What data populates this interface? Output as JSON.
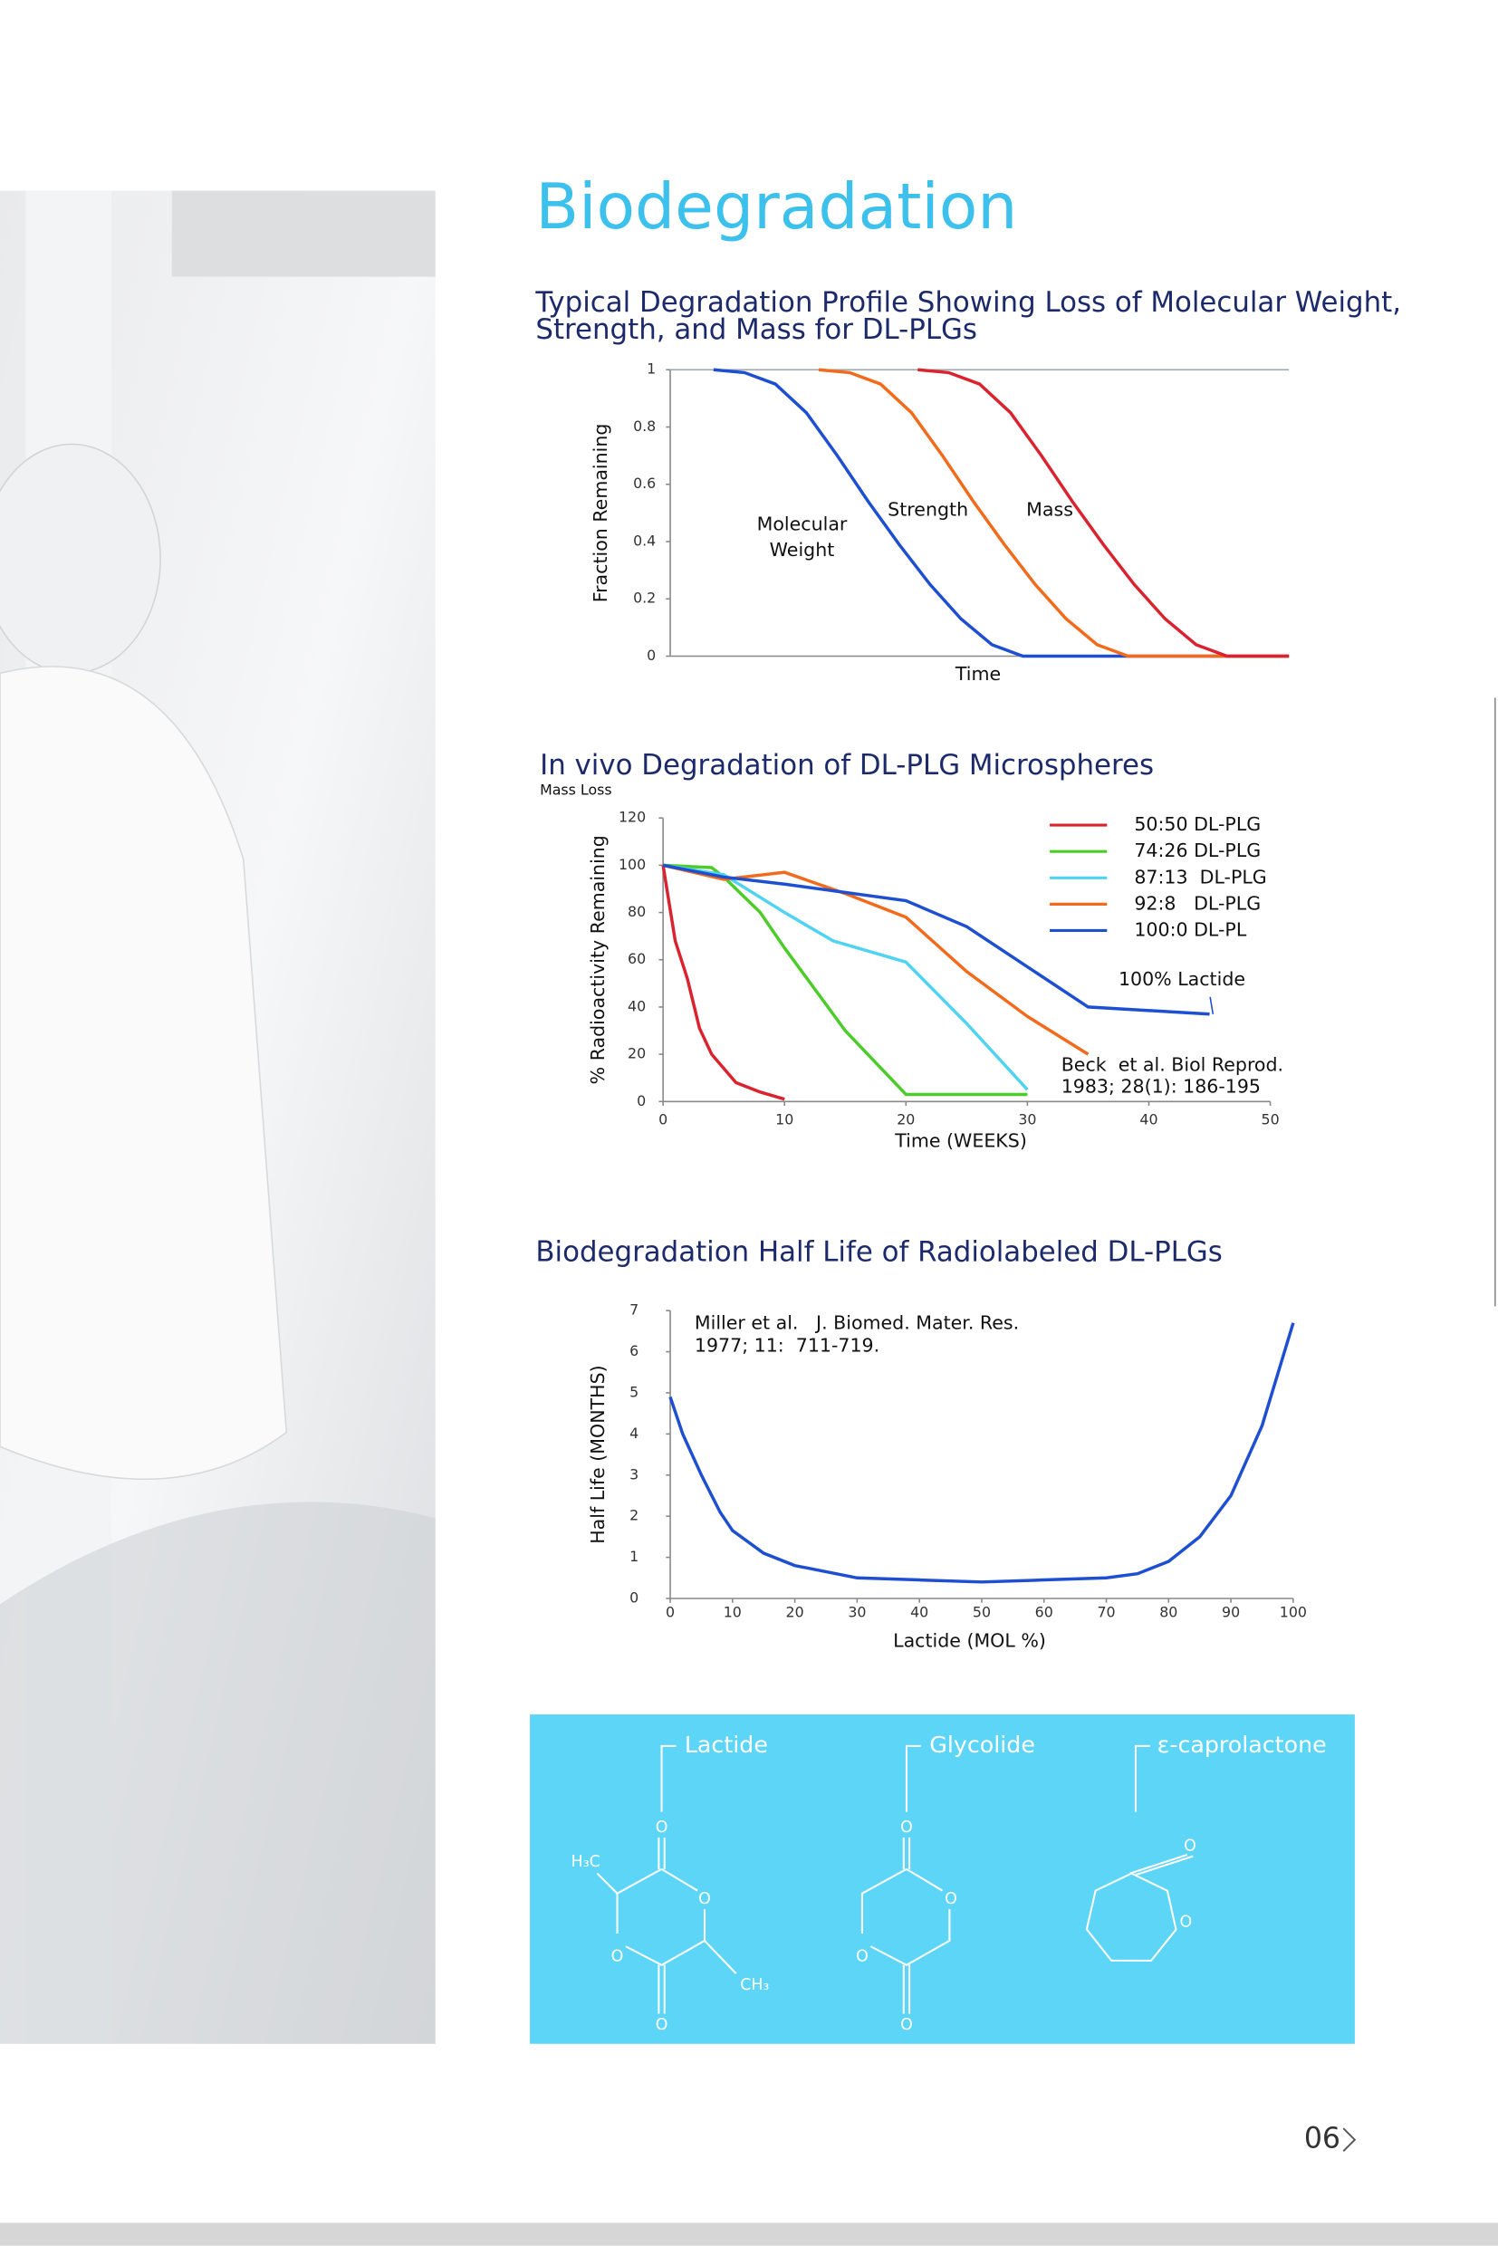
{
  "title": "Biodegradation",
  "page_number": "06",
  "chart_data": [
    {
      "type": "line",
      "title": [
        "Typical Degradation Profile Showing Loss of Molecular Weight,",
        "Strength, and Mass for DL-PLGs"
      ],
      "y_label": "Fraction Remaining",
      "x_label": "Time",
      "xlim": [
        0,
        100
      ],
      "ylim": [
        0,
        1
      ],
      "yticks": [
        0,
        0.2,
        0.4,
        0.6,
        0.8,
        1
      ],
      "series": [
        {
          "name": "Molecular Weight",
          "color": "#1d4fd0",
          "x": [
            7,
            12,
            17,
            22,
            27,
            32,
            37,
            42,
            47,
            52,
            57,
            100
          ],
          "values": [
            1,
            0.99,
            0.95,
            0.85,
            0.7,
            0.54,
            0.39,
            0.25,
            0.13,
            0.04,
            0,
            0
          ]
        },
        {
          "name": "Strength",
          "color": "#f26a1b",
          "x": [
            24,
            29,
            34,
            39,
            44,
            49,
            54,
            59,
            64,
            69,
            74,
            100
          ],
          "values": [
            1,
            0.99,
            0.95,
            0.85,
            0.7,
            0.54,
            0.39,
            0.25,
            0.13,
            0.04,
            0,
            0
          ]
        },
        {
          "name": "Mass",
          "color": "#d9232e",
          "x": [
            40,
            45,
            50,
            55,
            60,
            65,
            70,
            75,
            80,
            85,
            90,
            100
          ],
          "values": [
            1,
            0.99,
            0.95,
            0.85,
            0.7,
            0.54,
            0.39,
            0.25,
            0.13,
            0.04,
            0,
            0
          ]
        }
      ]
    },
    {
      "type": "line",
      "title": "In vivo Degradation of  DL-PLG Microspheres",
      "subtitle": "Mass Loss",
      "y_label": "% Radioactivity Remaining",
      "x_label": "Time (WEEKS)",
      "xlim": [
        0,
        50
      ],
      "xticks": [
        0,
        10,
        20,
        30,
        40,
        50
      ],
      "ylim": [
        0,
        120
      ],
      "yticks": [
        0,
        20,
        40,
        60,
        80,
        100,
        120
      ],
      "annotations": [
        "100% Lactide",
        "Beck  et al. Biol Reprod.",
        "1983; 28(1): 186-195"
      ],
      "series": [
        {
          "name": "50:50 DL-PLG",
          "color": "#d9232e",
          "x": [
            0,
            1,
            2,
            3,
            4,
            6,
            8,
            10
          ],
          "values": [
            100,
            68,
            52,
            31,
            20,
            8,
            4,
            1
          ]
        },
        {
          "name": "74:26 DL-PLG",
          "color": "#4ccc2a",
          "x": [
            0,
            4,
            5,
            8,
            10,
            15,
            20,
            30
          ],
          "values": [
            100,
            99,
            95,
            80,
            65,
            30,
            3,
            3
          ]
        },
        {
          "name": "87:13  DL-PLG",
          "color": "#4fd3f0",
          "x": [
            0,
            5,
            10,
            14,
            20,
            25,
            30
          ],
          "values": [
            100,
            96,
            80,
            68,
            59,
            33,
            5
          ]
        },
        {
          "name": "92:8   DL-PLG",
          "color": "#f26a1b",
          "x": [
            0,
            5,
            10,
            15,
            20,
            25,
            30,
            35
          ],
          "values": [
            100,
            94,
            97,
            88,
            78,
            55,
            36,
            20
          ]
        },
        {
          "name": "100:0 DL-PL",
          "color": "#1d4fd0",
          "x": [
            0,
            5,
            10,
            20,
            25,
            30,
            35,
            45
          ],
          "values": [
            100,
            95,
            92,
            85,
            74,
            57,
            40,
            37
          ]
        }
      ]
    },
    {
      "type": "line",
      "title": "Biodegradation Half Life of Radiolabeled DL-PLGs",
      "y_label": "Half Life (MONTHS)",
      "x_label": "Lactide (MOL %)",
      "xlim": [
        0,
        100
      ],
      "xticks": [
        0,
        10,
        20,
        30,
        40,
        50,
        60,
        70,
        80,
        90,
        100
      ],
      "ylim": [
        0,
        7
      ],
      "yticks": [
        0,
        1,
        2,
        3,
        4,
        5,
        6,
        7
      ],
      "annotations": [
        "Miller et al.   J. Biomed. Mater. Res.",
        "1977; 11:  711-719."
      ],
      "series": [
        {
          "color": "#1d4fd0",
          "x": [
            0,
            2,
            5,
            8,
            10,
            15,
            20,
            30,
            40,
            50,
            60,
            70,
            75,
            80,
            85,
            90,
            95,
            100
          ],
          "values": [
            4.9,
            4.0,
            3.0,
            2.1,
            1.65,
            1.1,
            0.8,
            0.5,
            0.45,
            0.4,
            0.45,
            0.5,
            0.6,
            0.9,
            1.5,
            2.5,
            4.2,
            6.7
          ]
        }
      ]
    }
  ],
  "structures": [
    {
      "label": "Lactide",
      "atoms": [
        "O",
        "H₃C",
        "O",
        "O",
        "CH₃",
        "O"
      ]
    },
    {
      "label": "Glycolide",
      "atoms": [
        "O",
        "O",
        "O",
        "O"
      ]
    },
    {
      "label": "ε-caprolactone",
      "atoms": [
        "O",
        "O"
      ]
    }
  ]
}
